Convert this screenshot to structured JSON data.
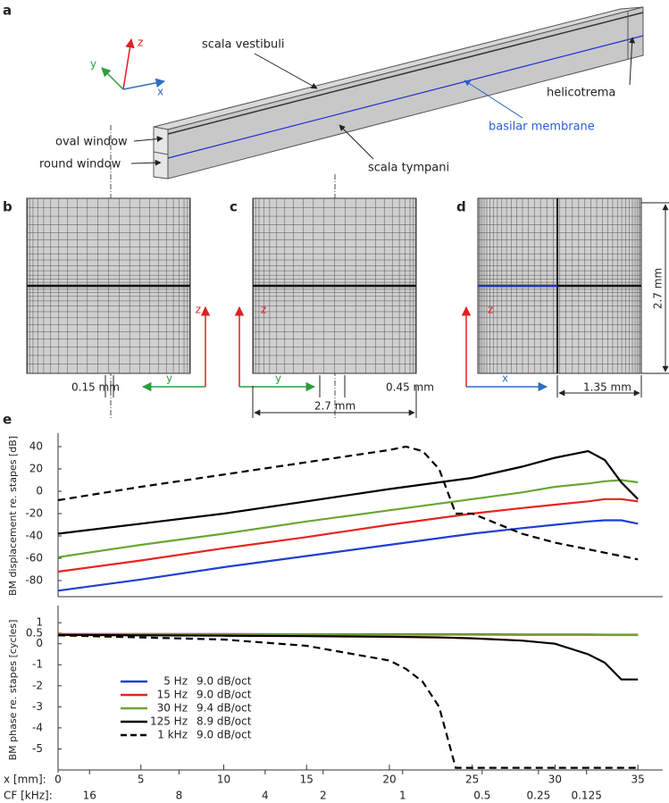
{
  "panels": {
    "a": {
      "letter": "a",
      "labels": [
        "scala vestibuli",
        "helicotrema",
        "basilar membrane",
        "oval window",
        "round window",
        "scala tympani"
      ],
      "axes": [
        "z",
        "y",
        "x"
      ]
    },
    "b": {
      "letter": "b",
      "width": "0.15 mm",
      "axes": [
        "z",
        "y"
      ]
    },
    "c": {
      "letter": "c",
      "width": "0.45 mm",
      "span": "2.7 mm",
      "axes": [
        "z",
        "y"
      ]
    },
    "d": {
      "letter": "d",
      "height": "2.7 mm",
      "width": "1.35 mm",
      "axes": [
        "z",
        "x"
      ]
    },
    "e": {
      "letter": "e"
    }
  },
  "chart_data": [
    {
      "type": "line",
      "y_label": "BM displacement re. stapes [dB]",
      "x": [
        0,
        5,
        10,
        15,
        20,
        21,
        22,
        23,
        24,
        25,
        28,
        30,
        32,
        33,
        34,
        35
      ],
      "xlim": [
        0,
        36.5
      ],
      "ylim": [
        -92,
        48
      ],
      "yticks": [
        40,
        20,
        0,
        -20,
        -40,
        -60,
        -80
      ],
      "series": [
        {
          "name": "5 Hz",
          "color": "#1f3fd1",
          "values": [
            -89,
            -79,
            -68,
            -58,
            -48,
            -46,
            -44,
            -42,
            -40,
            -38,
            -33,
            -30,
            -27,
            -26,
            -26,
            -29
          ]
        },
        {
          "name": "15 Hz",
          "color": "#e8231e",
          "values": [
            -72,
            -62,
            -51,
            -41,
            -30,
            -28,
            -26,
            -24,
            -22,
            -20,
            -15,
            -12,
            -9,
            -7,
            -7,
            -9
          ]
        },
        {
          "name": "30 Hz",
          "color": "#6aa632",
          "values": [
            -59,
            -48,
            -38,
            -27,
            -17,
            -15,
            -13,
            -11,
            -9,
            -7,
            -1,
            4,
            7,
            9,
            10,
            8
          ]
        },
        {
          "name": "125 Hz",
          "color": "#000000",
          "values": [
            -38,
            -29,
            -20,
            -9,
            2,
            4,
            6,
            8,
            10,
            12,
            22,
            30,
            36,
            28,
            8,
            -7
          ]
        },
        {
          "name": "1 kHz",
          "color": "#000000",
          "dashed": true,
          "values": [
            -8,
            4,
            15,
            26,
            37,
            40,
            36,
            20,
            -20,
            -20,
            -38,
            -46,
            -52,
            -55,
            -58,
            -61
          ]
        }
      ]
    },
    {
      "type": "line",
      "y_label": "BM phase re. stapes [cycles]",
      "x": [
        0,
        5,
        10,
        15,
        20,
        21,
        22,
        23,
        24,
        25,
        28,
        30,
        32,
        33,
        34,
        35
      ],
      "xlim": [
        0,
        36.5
      ],
      "ylim": [
        -6,
        1.6
      ],
      "yticks": [
        1,
        0.5,
        0,
        -1,
        -2,
        -3,
        -4,
        -5
      ],
      "x_label": "x [mm]:",
      "xticks": [
        0,
        5,
        10,
        15,
        20,
        25,
        30,
        35
      ],
      "cf_label": "CF [kHz]:",
      "cfticks": [
        {
          "value": 1.9,
          "label": "16"
        },
        {
          "value": 7.3,
          "label": "8"
        },
        {
          "value": 12.5,
          "label": "4"
        },
        {
          "value": 16,
          "label": "2"
        },
        {
          "value": 20.8,
          "label": "1"
        },
        {
          "value": 25.6,
          "label": "0.5"
        },
        {
          "value": 29,
          "label": "0.25"
        },
        {
          "value": 31.9,
          "label": "0.125"
        }
      ],
      "series": [
        {
          "name": "5 Hz",
          "slope": "9.0 dB/oct",
          "color": "#1f3fd1",
          "values": [
            0.45,
            0.45,
            0.45,
            0.45,
            0.44,
            0.44,
            0.44,
            0.44,
            0.44,
            0.44,
            0.43,
            0.43,
            0.43,
            0.42,
            0.42,
            0.42
          ]
        },
        {
          "name": "15 Hz",
          "slope": "9.0 dB/oct",
          "color": "#e8231e",
          "values": [
            0.46,
            0.46,
            0.46,
            0.45,
            0.45,
            0.45,
            0.45,
            0.45,
            0.45,
            0.45,
            0.44,
            0.44,
            0.44,
            0.43,
            0.43,
            0.43
          ]
        },
        {
          "name": "30 Hz",
          "slope": "9.4 dB/oct",
          "color": "#6aa632",
          "values": [
            0.44,
            0.44,
            0.44,
            0.44,
            0.43,
            0.43,
            0.43,
            0.43,
            0.43,
            0.43,
            0.42,
            0.42,
            0.42,
            0.41,
            0.41,
            0.41
          ]
        },
        {
          "name": "125 Hz",
          "slope": "8.9 dB/oct",
          "color": "#000000",
          "values": [
            0.42,
            0.4,
            0.38,
            0.36,
            0.33,
            0.32,
            0.31,
            0.3,
            0.28,
            0.26,
            0.15,
            0,
            -0.5,
            -0.9,
            -1.7,
            -1.7
          ]
        },
        {
          "name": "1 kHz",
          "slope": "9.0 dB/oct",
          "color": "#000000",
          "dashed": true,
          "values": [
            0.4,
            0.3,
            0.2,
            -0.1,
            -0.8,
            -1.2,
            -1.8,
            -3,
            -5.9,
            -5.9,
            -5.9,
            -5.9,
            -5.9,
            -5.9,
            -5.9,
            -5.9
          ]
        }
      ]
    }
  ]
}
